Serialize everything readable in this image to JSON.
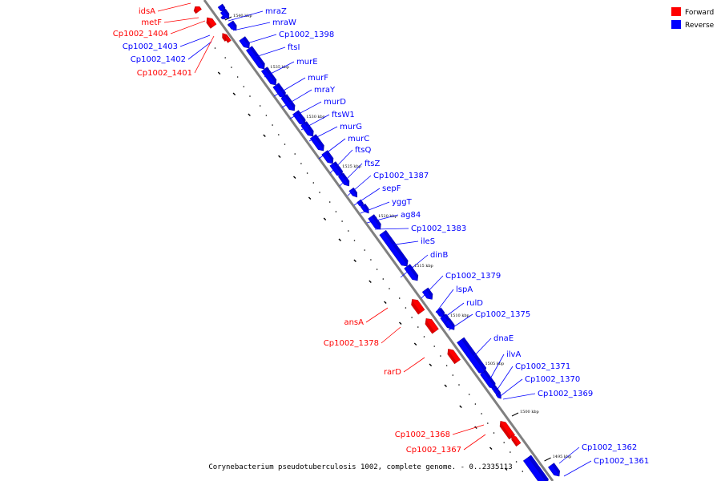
{
  "caption": "Corynebacterium pseudotuberculosis 1002, complete genome. - 0..2335113",
  "colors": {
    "forward": "#ff0000",
    "reverse": "#0000ff",
    "backbone": "#808080"
  },
  "legend": [
    {
      "label": "Forward",
      "strand": "forward"
    },
    {
      "label": "Reverse",
      "strand": "reverse"
    }
  ],
  "ticks": [
    {
      "label": "1540 kbp"
    },
    {
      "label": "1535 kbp"
    },
    {
      "label": "1530 kbp"
    },
    {
      "label": "1525 kbp"
    },
    {
      "label": "1520 kbp"
    },
    {
      "label": "1515 kbp"
    },
    {
      "label": "1510 kbp"
    },
    {
      "label": "1505 kbp"
    },
    {
      "label": "1500 kbp"
    },
    {
      "label": "1495 kbp"
    }
  ],
  "genes": [
    {
      "name": "idsA",
      "strand": "forward"
    },
    {
      "name": "metF",
      "strand": "forward"
    },
    {
      "name": "Cp1002_1404",
      "strand": "forward"
    },
    {
      "name": "Cp1002_1403",
      "strand": "reverse"
    },
    {
      "name": "Cp1002_1402",
      "strand": "reverse"
    },
    {
      "name": "Cp1002_1401",
      "strand": "forward"
    },
    {
      "name": "mraZ",
      "strand": "reverse"
    },
    {
      "name": "mraW",
      "strand": "reverse"
    },
    {
      "name": "Cp1002_1398",
      "strand": "reverse"
    },
    {
      "name": "ftsI",
      "strand": "reverse"
    },
    {
      "name": "murE",
      "strand": "reverse"
    },
    {
      "name": "murF",
      "strand": "reverse"
    },
    {
      "name": "mraY",
      "strand": "reverse"
    },
    {
      "name": "murD",
      "strand": "reverse"
    },
    {
      "name": "ftsW1",
      "strand": "reverse"
    },
    {
      "name": "murG",
      "strand": "reverse"
    },
    {
      "name": "murC",
      "strand": "reverse"
    },
    {
      "name": "ftsQ",
      "strand": "reverse"
    },
    {
      "name": "ftsZ",
      "strand": "reverse"
    },
    {
      "name": "Cp1002_1387",
      "strand": "reverse"
    },
    {
      "name": "sepF",
      "strand": "reverse"
    },
    {
      "name": "yggT",
      "strand": "reverse"
    },
    {
      "name": "ag84",
      "strand": "reverse"
    },
    {
      "name": "Cp1002_1383",
      "strand": "reverse"
    },
    {
      "name": "ileS",
      "strand": "reverse"
    },
    {
      "name": "dinB",
      "strand": "reverse"
    },
    {
      "name": "Cp1002_1379",
      "strand": "reverse"
    },
    {
      "name": "lspA",
      "strand": "reverse"
    },
    {
      "name": "ansA",
      "strand": "forward"
    },
    {
      "name": "rulD",
      "strand": "reverse"
    },
    {
      "name": "Cp1002_1378",
      "strand": "forward"
    },
    {
      "name": "Cp1002_1375",
      "strand": "reverse"
    },
    {
      "name": "dnaE",
      "strand": "reverse"
    },
    {
      "name": "rarD",
      "strand": "forward"
    },
    {
      "name": "ilvA",
      "strand": "reverse"
    },
    {
      "name": "Cp1002_1371",
      "strand": "reverse"
    },
    {
      "name": "Cp1002_1370",
      "strand": "reverse"
    },
    {
      "name": "Cp1002_1369",
      "strand": "reverse"
    },
    {
      "name": "Cp1002_1368",
      "strand": "forward"
    },
    {
      "name": "Cp1002_1367",
      "strand": "forward"
    },
    {
      "name": "Cp1002_1362",
      "strand": "reverse"
    },
    {
      "name": "Cp1002_1361",
      "strand": "reverse"
    }
  ]
}
